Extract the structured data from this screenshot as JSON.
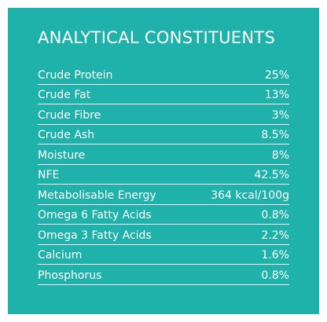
{
  "header": {
    "title": "ANALYTICAL CONSTITUENTS"
  },
  "table": {
    "rows": [
      [
        "Crude Protein",
        "25%"
      ],
      [
        "Crude Fat",
        "13%"
      ],
      [
        "Crude Fibre",
        "3%"
      ],
      [
        "Crude Ash",
        "8.5%"
      ],
      [
        "Moisture",
        "8%"
      ],
      [
        "NFE",
        "42.5%"
      ],
      [
        "Metabolisable Energy",
        "364 kcal/100g"
      ],
      [
        "Omega 6 Fatty Acids",
        "0.8%"
      ],
      [
        "Omega 3 Fatty Acids",
        "2.2%"
      ],
      [
        "Calcium",
        "1.6%"
      ],
      [
        "Phosphorus",
        "0.8%"
      ]
    ]
  }
}
